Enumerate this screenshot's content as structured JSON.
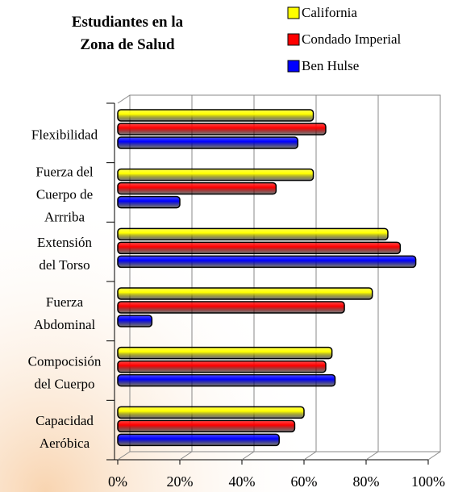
{
  "chart_data": {
    "type": "bar",
    "orientation": "horizontal",
    "title": "Estudiantes en la\nZona de Salud",
    "categories": [
      "Flexibilidad",
      "Fuerza del\nCuerpo de\nArrriba",
      "Extensión\ndel Torso",
      "Fuerza\nAbdominal",
      "Compocisión\ndel Cuerpo",
      "Capacidad\nAeróbica"
    ],
    "series": [
      {
        "name": "California",
        "color": "#ffff00",
        "values": [
          63,
          63,
          87,
          82,
          69,
          60
        ]
      },
      {
        "name": "Condado Imperial",
        "color": "#ff0000",
        "values": [
          67,
          51,
          91,
          73,
          67,
          57
        ]
      },
      {
        "name": "Ben Hulse",
        "color": "#0000ff",
        "values": [
          58,
          20,
          96,
          11,
          70,
          52
        ]
      }
    ],
    "xlim": [
      0,
      100
    ],
    "xticks": [
      {
        "value": 0,
        "label": "0%"
      },
      {
        "value": 20,
        "label": "20%"
      },
      {
        "value": 40,
        "label": "40%"
      },
      {
        "value": 60,
        "label": "60%"
      },
      {
        "value": 80,
        "label": "80%"
      },
      {
        "value": 100,
        "label": "100%"
      }
    ],
    "grid": true
  }
}
